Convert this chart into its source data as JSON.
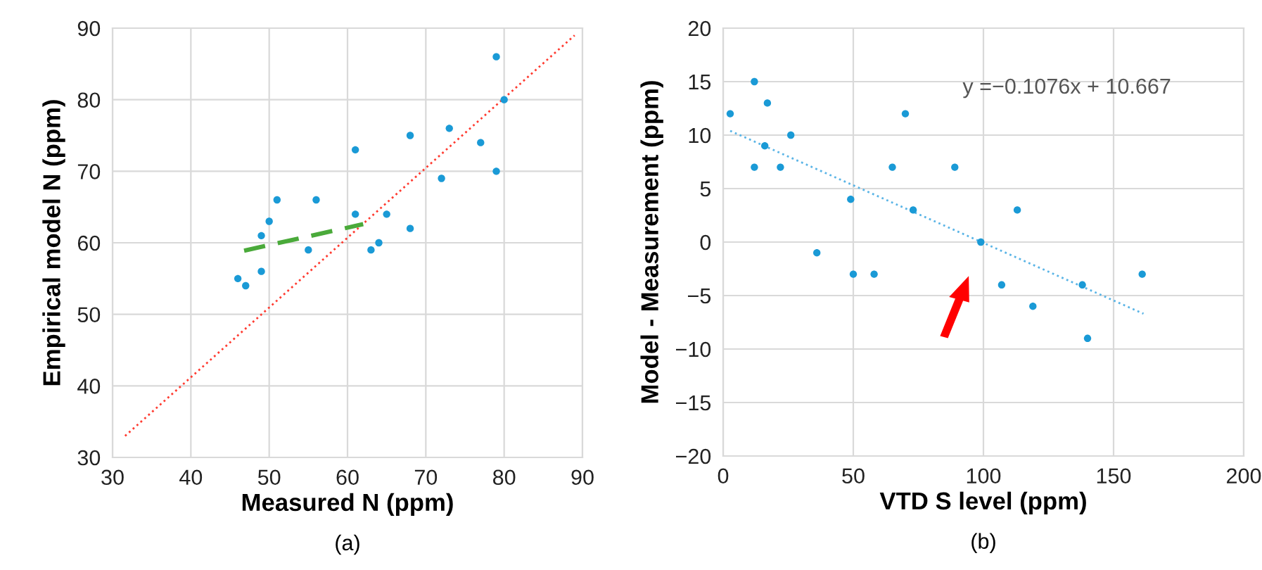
{
  "chart_data": [
    {
      "type": "scatter",
      "xlabel": "Measured N (ppm)",
      "ylabel": "Empirical model N (ppm)",
      "annotations": [
        "(a)"
      ],
      "xlim": [
        30,
        90
      ],
      "xticks": [
        30,
        40,
        50,
        60,
        70,
        80,
        90
      ],
      "ylim": [
        30,
        90
      ],
      "yticks": [
        30,
        40,
        50,
        60,
        70,
        80,
        90
      ],
      "grid": true,
      "marker": "circle",
      "series": [
        {
          "color": "#1a9ad6",
          "x": [
            79,
            80,
            61,
            68,
            73,
            77,
            72,
            79,
            51,
            56,
            50,
            61,
            65,
            68,
            49,
            55,
            63,
            64,
            46,
            47,
            49
          ],
          "values": [
            86,
            80,
            73,
            75,
            76,
            74,
            69,
            70,
            66,
            66,
            63,
            64,
            64,
            62,
            61,
            59,
            59,
            60,
            55,
            54,
            56
          ]
        },
        {
          "type": "line",
          "color": "#ff3b30",
          "line_style": "dotted",
          "marker": "none",
          "x": [
            31.6,
            89
          ],
          "values": [
            33,
            89
          ]
        },
        {
          "type": "line",
          "color": "#4aaa3a",
          "line_style": "dashed",
          "marker": "none",
          "x": [
            46.8,
            62
          ],
          "values": [
            58.9,
            62.6
          ]
        }
      ]
    },
    {
      "type": "scatter",
      "xlabel": "VTD S level (ppm)",
      "ylabel": "Model - Measurement (ppm)",
      "annotations": [
        "y =−0.1076x + 10.667",
        "(b)"
      ],
      "xlim": [
        0,
        200
      ],
      "xticks": [
        0,
        50,
        100,
        150,
        200
      ],
      "ylim": [
        -20,
        20
      ],
      "yticks": [
        {
          "value": -20,
          "label": "−20"
        },
        {
          "value": -15,
          "label": "−15"
        },
        {
          "value": -10,
          "label": "−10"
        },
        {
          "value": -5,
          "label": "−5"
        },
        0,
        5,
        10,
        15,
        20
      ],
      "grid": true,
      "marker": "circle",
      "series": [
        {
          "color": "#1a9ad6",
          "x": [
            2.7,
            12,
            12,
            17,
            16,
            22,
            26,
            36,
            49,
            50,
            58,
            65,
            70,
            73,
            89,
            99,
            107,
            113,
            119,
            138,
            140,
            161
          ],
          "values": [
            12,
            15,
            7,
            13,
            9,
            7,
            10,
            -1,
            4,
            -3,
            -3,
            7,
            12,
            3,
            7,
            0,
            -4,
            3,
            -6,
            -4,
            -9,
            -3
          ]
        },
        {
          "type": "line",
          "color": "#5ab4e6",
          "line_style": "dotted",
          "marker": "none",
          "x": [
            2.7,
            161.5
          ],
          "values": [
            10.4,
            -6.7
          ]
        }
      ]
    }
  ]
}
